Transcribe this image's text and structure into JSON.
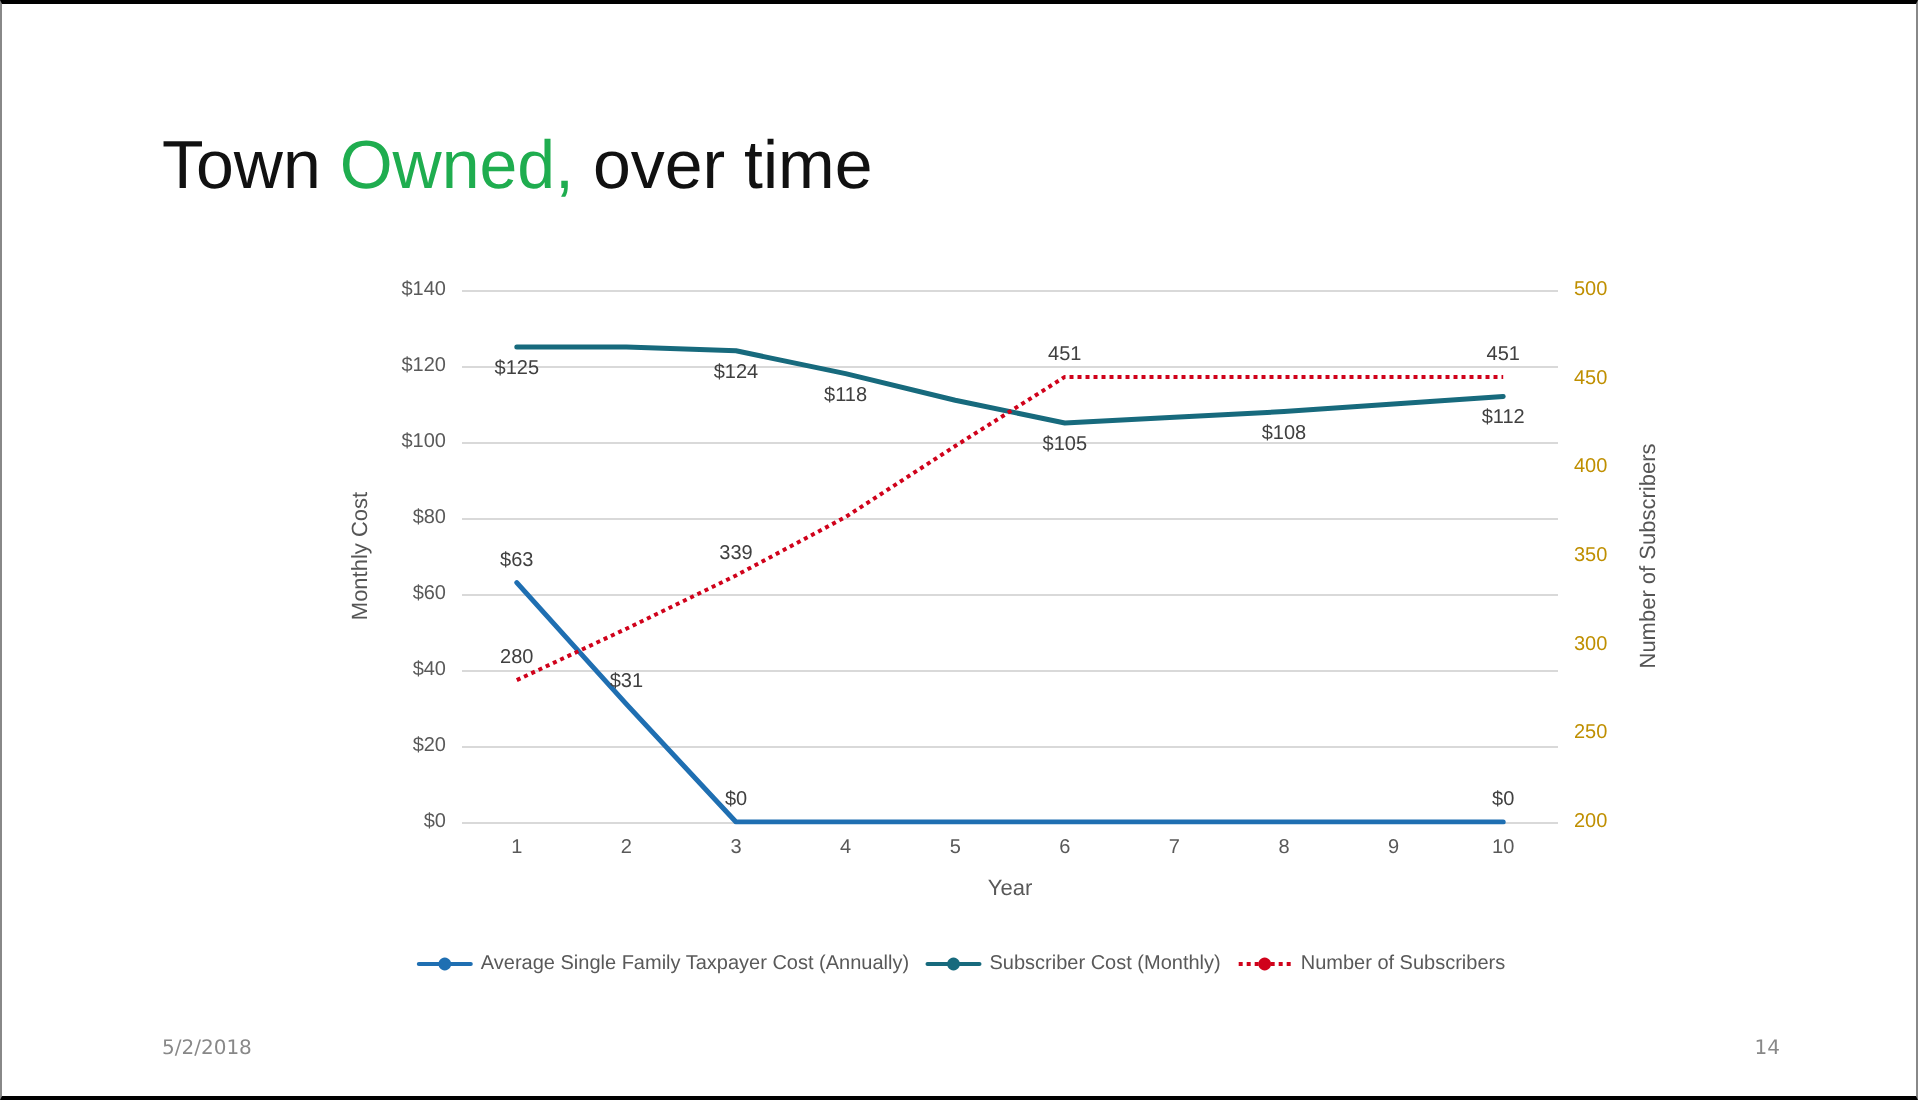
{
  "chart_data": {
    "type": "line",
    "title": "Town Owned, over time",
    "xlabel": "Year",
    "ylabel": "Monthly Cost",
    "y2label": "Number of Subscribers",
    "categories": [
      "1",
      "2",
      "3",
      "4",
      "5",
      "6",
      "7",
      "8",
      "9",
      "10"
    ],
    "series": [
      {
        "name": "Average Single Family Taxpayer Cost (Annually)",
        "color": "#1f6fb2",
        "line_style": "solid",
        "values": [
          63,
          31,
          0,
          0,
          0,
          0,
          0,
          0,
          0,
          0
        ],
        "value_labels": [
          "$63",
          "$31",
          "$0",
          null,
          null,
          null,
          null,
          null,
          null,
          "$0"
        ]
      },
      {
        "name": "Subscriber Cost (Monthly)",
        "color": "#176a7d",
        "line_style": "solid",
        "values": [
          125,
          125,
          124,
          118,
          111,
          105,
          106.5,
          108,
          110,
          112
        ],
        "value_labels": [
          "$125",
          null,
          "$124",
          "$118",
          null,
          "$105",
          null,
          "$108",
          null,
          "$112"
        ]
      },
      {
        "name": "Number of Subscribers",
        "color": "#d0021b",
        "line_style": "dotted",
        "axis": "y2",
        "values": [
          280,
          309,
          339,
          372,
          412,
          451,
          451,
          451,
          451,
          451
        ],
        "value_labels": [
          "280",
          null,
          "339",
          null,
          null,
          "451",
          null,
          null,
          null,
          "451"
        ]
      }
    ],
    "ylim": [
      0,
      140
    ],
    "yticks": [
      {
        "value": 0,
        "label": "$0"
      },
      {
        "value": 20,
        "label": "$20"
      },
      {
        "value": 40,
        "label": "$40"
      },
      {
        "value": 60,
        "label": "$60"
      },
      {
        "value": 80,
        "label": "$80"
      },
      {
        "value": 100,
        "label": "$100"
      },
      {
        "value": 120,
        "label": "$120"
      },
      {
        "value": 140,
        "label": "$140"
      }
    ],
    "y2lim": [
      200,
      500
    ],
    "y2ticks": [
      200,
      250,
      300,
      350,
      400,
      450,
      500
    ],
    "grid": "y",
    "legend": "bottom",
    "marker": "none",
    "annotations": [
      "5/2/2018",
      "14"
    ]
  }
}
